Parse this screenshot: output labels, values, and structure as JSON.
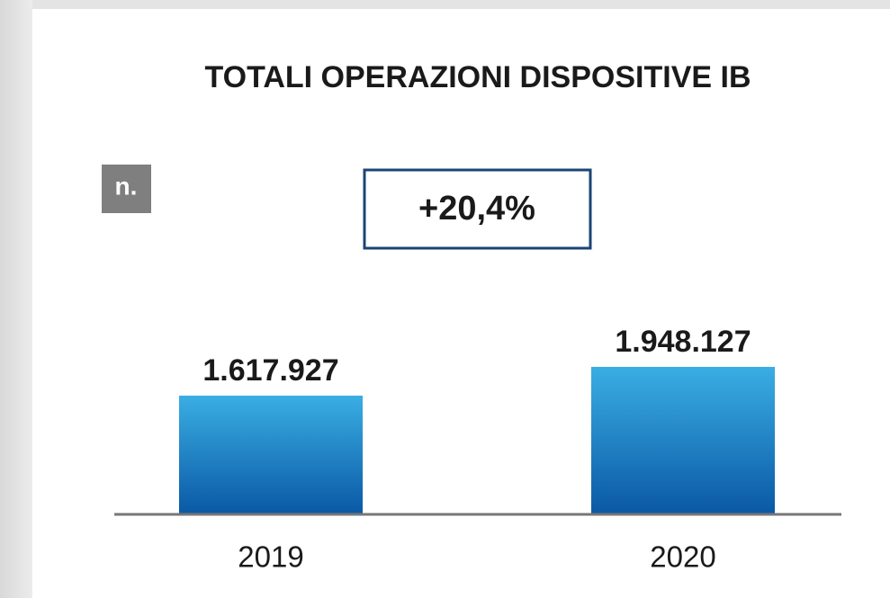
{
  "chart_data": {
    "type": "bar",
    "title": "TOTALI OPERAZIONI DISPOSITIVE IB",
    "unit_label": "n.",
    "annotation": "+20,4%",
    "categories": [
      "2019",
      "2020"
    ],
    "values": [
      1617927,
      1948127
    ],
    "value_labels": [
      "1.617.927",
      "1.948.127"
    ],
    "ylim": [
      255000,
      2340000
    ],
    "gradient": [
      "#3aaee3",
      "#0a58a5"
    ]
  }
}
